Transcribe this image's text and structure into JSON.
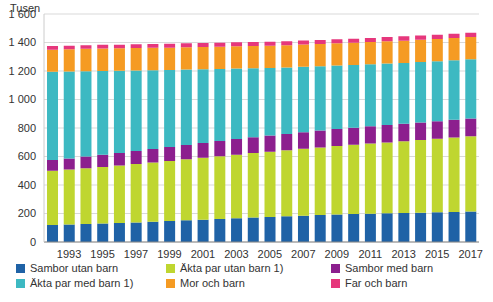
{
  "chart_data": {
    "type": "bar",
    "stacked": true,
    "grid": true,
    "legend": "bottom",
    "y_label": "Tusen",
    "categories": [
      null,
      "1993",
      null,
      "1995",
      null,
      "1997",
      null,
      "1999",
      null,
      "2001",
      null,
      "2003",
      null,
      "2005",
      null,
      "2007",
      null,
      "2009",
      null,
      "2011",
      null,
      "2013",
      null,
      "2015",
      null,
      "2017"
    ],
    "ylim": [
      0,
      1600
    ],
    "yticks": [
      0,
      200,
      400,
      600,
      800,
      {
        "value": 1000,
        "label": "1 000"
      },
      {
        "value": 1200,
        "label": "1 200"
      },
      {
        "value": 1400,
        "label": "1 400"
      },
      {
        "value": 1600,
        "label": "1 600"
      }
    ],
    "series": [
      {
        "name": "Sambor utan barn",
        "color": "#1f62a6",
        "values": [
          120,
          123,
          126,
          129,
          133,
          137,
          142,
          147,
          152,
          157,
          162,
          167,
          172,
          176,
          180,
          185,
          189,
          193,
          196,
          199,
          201,
          203,
          205,
          208,
          211,
          214
        ]
      },
      {
        "name": "Äkta par utan barn 1)",
        "color": "#bfd630",
        "values": [
          380,
          385,
          392,
          398,
          404,
          410,
          416,
          422,
          428,
          434,
          440,
          446,
          452,
          458,
          463,
          469,
          475,
          481,
          486,
          492,
          498,
          504,
          510,
          516,
          522,
          528
        ]
      },
      {
        "name": "Sambor med barn",
        "color": "#8c1f8e",
        "values": [
          75,
          78,
          82,
          85,
          88,
          91,
          94,
          97,
          100,
          103,
          106,
          109,
          111,
          113,
          115,
          117,
          118,
          119,
          120,
          121,
          122,
          123,
          124,
          124,
          125,
          125
        ]
      },
      {
        "name": "Äkta par med barn 1)",
        "color": "#3db9c2",
        "values": [
          620,
          610,
          598,
          588,
          576,
          565,
          553,
          541,
          530,
          518,
          506,
          495,
          484,
          474,
          466,
          458,
          451,
          445,
          440,
          435,
          431,
          427,
          424,
          421,
          418,
          416
        ]
      },
      {
        "name": "Mor och barn",
        "color": "#f59b23",
        "values": [
          155,
          157,
          158,
          158,
          158,
          158,
          158,
          157,
          157,
          157,
          157,
          157,
          157,
          157,
          157,
          157,
          156,
          156,
          156,
          156,
          156,
          156,
          156,
          155,
          155,
          155
        ]
      },
      {
        "name": "Far och barn",
        "color": "#e6377c",
        "values": [
          25,
          25,
          25,
          26,
          26,
          26,
          26,
          27,
          27,
          27,
          27,
          28,
          28,
          28,
          28,
          28,
          29,
          29,
          29,
          29,
          30,
          30,
          30,
          30,
          30,
          30
        ]
      }
    ]
  }
}
